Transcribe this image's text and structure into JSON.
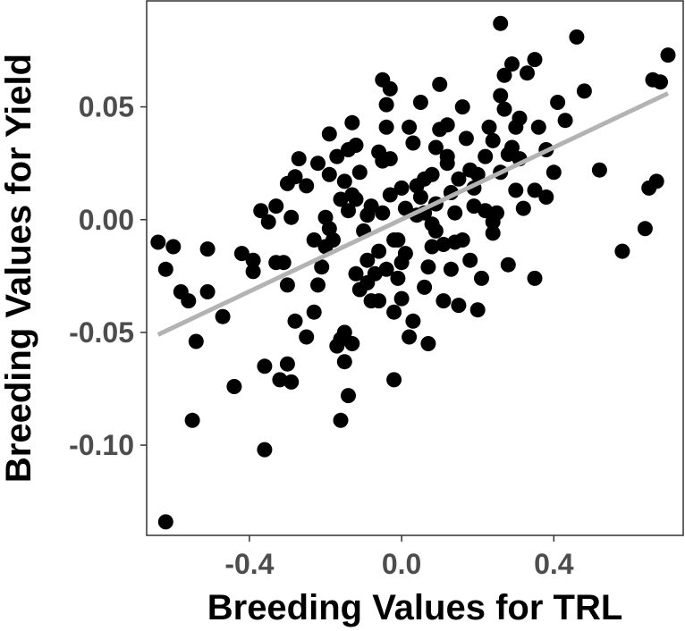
{
  "chart_data": {
    "type": "scatter",
    "title": "",
    "xlabel": "Breeding Values for TRL",
    "ylabel": "Breeding Values for Yield",
    "xlim": [
      -0.67,
      0.74
    ],
    "ylim": [
      -0.14,
      0.097
    ],
    "x_ticks": [
      -0.4,
      0.0,
      0.4
    ],
    "x_tick_labels": [
      "-0.4",
      "0.0",
      "0.4"
    ],
    "y_ticks": [
      -0.1,
      -0.05,
      0.0,
      0.05
    ],
    "y_tick_labels": [
      "-0.10",
      "-0.05",
      "0.00",
      "0.05"
    ],
    "grid": false,
    "colors": {
      "points": "#000000",
      "fit_line": "#b3b3b3",
      "frame": "#333333",
      "ticks": "#4d4d4d"
    },
    "fit_line": {
      "x": [
        -0.64,
        0.7
      ],
      "y": [
        -0.051,
        0.056
      ]
    },
    "points": [
      [
        -0.64,
        -0.01
      ],
      [
        -0.62,
        -0.022
      ],
      [
        -0.6,
        -0.012
      ],
      [
        -0.58,
        -0.032
      ],
      [
        -0.56,
        -0.036
      ],
      [
        -0.54,
        -0.054
      ],
      [
        -0.51,
        -0.013
      ],
      [
        -0.51,
        -0.032
      ],
      [
        -0.55,
        -0.089
      ],
      [
        -0.62,
        -0.134
      ],
      [
        -0.47,
        -0.043
      ],
      [
        -0.44,
        -0.074
      ],
      [
        -0.42,
        -0.015
      ],
      [
        -0.39,
        -0.023
      ],
      [
        -0.39,
        -0.018
      ],
      [
        -0.36,
        -0.065
      ],
      [
        -0.36,
        -0.102
      ],
      [
        -0.37,
        0.004
      ],
      [
        -0.35,
        -0.001
      ],
      [
        -0.33,
        0.006
      ],
      [
        -0.33,
        -0.019
      ],
      [
        -0.32,
        -0.071
      ],
      [
        -0.3,
        -0.064
      ],
      [
        -0.29,
        -0.072
      ],
      [
        -0.3,
        0.016
      ],
      [
        -0.28,
        0.019
      ],
      [
        -0.3,
        -0.029
      ],
      [
        -0.31,
        -0.019
      ],
      [
        -0.29,
        0.001
      ],
      [
        -0.27,
        0.027
      ],
      [
        -0.28,
        -0.045
      ],
      [
        -0.25,
        -0.052
      ],
      [
        -0.23,
        -0.041
      ],
      [
        -0.22,
        -0.029
      ],
      [
        -0.23,
        -0.009
      ],
      [
        -0.21,
        -0.021
      ],
      [
        -0.2,
        -0.012
      ],
      [
        -0.2,
        0.001
      ],
      [
        -0.19,
        0.02
      ],
      [
        -0.19,
        0.038
      ],
      [
        -0.17,
        0.028
      ],
      [
        -0.16,
        -0.053
      ],
      [
        -0.17,
        -0.056
      ],
      [
        -0.15,
        -0.05
      ],
      [
        -0.15,
        -0.063
      ],
      [
        -0.14,
        -0.078
      ],
      [
        -0.16,
        -0.089
      ],
      [
        -0.13,
        -0.055
      ],
      [
        -0.12,
        -0.024
      ],
      [
        -0.14,
        0.004
      ],
      [
        -0.13,
        0.011
      ],
      [
        -0.14,
        0.031
      ],
      [
        -0.13,
        0.043
      ],
      [
        -0.12,
        0.033
      ],
      [
        -0.11,
        0.021
      ],
      [
        -0.1,
        -0.005
      ],
      [
        -0.09,
        -0.018
      ],
      [
        -0.08,
        -0.036
      ],
      [
        -0.07,
        -0.024
      ],
      [
        -0.06,
        -0.014
      ],
      [
        -0.05,
        0.003
      ],
      [
        -0.05,
        0.026
      ],
      [
        -0.04,
        0.041
      ],
      [
        -0.05,
        0.062
      ],
      [
        -0.04,
        0.051
      ],
      [
        -0.03,
        0.058
      ],
      [
        -0.02,
        -0.041
      ],
      [
        -0.01,
        -0.026
      ],
      [
        -0.01,
        -0.009
      ],
      [
        0.0,
        0.014
      ],
      [
        0.01,
        -0.015
      ],
      [
        0.02,
        -0.052
      ],
      [
        0.03,
        0.034
      ],
      [
        0.04,
        0.015
      ],
      [
        0.05,
        0.052
      ],
      [
        0.06,
        0.003
      ],
      [
        0.07,
        -0.021
      ],
      [
        0.08,
        -0.012
      ],
      [
        0.08,
        0.02
      ],
      [
        0.09,
        -0.005
      ],
      [
        0.1,
        0.04
      ],
      [
        0.1,
        0.06
      ],
      [
        0.11,
        -0.011
      ],
      [
        0.12,
        0.028
      ],
      [
        0.13,
        0.012
      ],
      [
        0.14,
        -0.01
      ],
      [
        0.15,
        0.018
      ],
      [
        0.16,
        0.05
      ],
      [
        0.17,
        0.036
      ],
      [
        0.18,
        -0.018
      ],
      [
        0.19,
        0.006
      ],
      [
        0.2,
        0.02
      ],
      [
        0.21,
        -0.026
      ],
      [
        0.22,
        0.004
      ],
      [
        0.23,
        0.041
      ],
      [
        0.24,
        0.035
      ],
      [
        0.25,
        0.003
      ],
      [
        0.26,
        0.055
      ],
      [
        0.27,
        0.064
      ],
      [
        0.28,
        0.029
      ],
      [
        0.29,
        0.069
      ],
      [
        0.3,
        0.013
      ],
      [
        0.31,
        0.045
      ],
      [
        0.32,
        0.005
      ],
      [
        0.35,
        0.071
      ],
      [
        0.36,
        0.041
      ],
      [
        0.38,
        0.01
      ],
      [
        0.41,
        0.052
      ],
      [
        0.43,
        0.044
      ],
      [
        0.46,
        0.081
      ],
      [
        0.48,
        0.057
      ],
      [
        0.52,
        0.022
      ],
      [
        0.58,
        -0.014
      ],
      [
        0.64,
        -0.004
      ],
      [
        0.66,
        0.062
      ],
      [
        0.68,
        0.061
      ],
      [
        0.7,
        0.073
      ],
      [
        0.65,
        0.014
      ],
      [
        0.67,
        0.017
      ],
      [
        0.26,
        0.087
      ],
      [
        0.35,
        -0.026
      ],
      [
        0.28,
        -0.02
      ],
      [
        0.2,
        -0.04
      ],
      [
        0.15,
        -0.038
      ],
      [
        0.07,
        -0.055
      ],
      [
        0.03,
        -0.045
      ],
      [
        -0.02,
        -0.071
      ],
      [
        -0.06,
        -0.036
      ],
      [
        -0.09,
        -0.028
      ],
      [
        0.12,
        0.042
      ],
      [
        0.05,
        0.01
      ],
      [
        -0.03,
        0.011
      ],
      [
        0.18,
        0.022
      ],
      [
        0.09,
        0.007
      ],
      [
        0.0,
        -0.019
      ],
      [
        -0.08,
        0.006
      ],
      [
        0.14,
        0.003
      ],
      [
        -0.18,
        -0.009
      ],
      [
        -0.11,
        -0.031
      ],
      [
        0.22,
        0.028
      ],
      [
        0.27,
        0.049
      ],
      [
        0.33,
        0.065
      ],
      [
        0.4,
        0.021
      ],
      [
        0.3,
        0.041
      ],
      [
        -0.02,
        -0.009
      ],
      [
        0.06,
        -0.03
      ],
      [
        0.11,
        -0.036
      ],
      [
        -0.22,
        0.025
      ],
      [
        -0.25,
        0.015
      ],
      [
        0.01,
        0.005
      ],
      [
        0.13,
        -0.022
      ],
      [
        0.24,
        -0.006
      ],
      [
        -0.04,
        -0.022
      ],
      [
        0.04,
        0.002
      ],
      [
        -0.12,
        0.009
      ],
      [
        0.19,
        0.014
      ],
      [
        0.26,
        0.021
      ],
      [
        -0.06,
        0.03
      ],
      [
        0.02,
        0.041
      ],
      [
        0.08,
        -0.002
      ],
      [
        -0.15,
        0.017
      ],
      [
        0.35,
        0.013
      ],
      [
        -0.19,
        -0.004
      ],
      [
        0.16,
        -0.009
      ],
      [
        0.09,
        0.032
      ],
      [
        0.29,
        0.032
      ],
      [
        -0.09,
        0.002
      ],
      [
        0.0,
        -0.035
      ],
      [
        0.38,
        0.031
      ],
      [
        0.24,
        -0.001
      ],
      [
        -0.03,
        0.027
      ],
      [
        0.12,
        0.025
      ],
      [
        -0.16,
        0.009
      ],
      [
        0.06,
        0.018
      ],
      [
        0.31,
        0.027
      ]
    ]
  }
}
